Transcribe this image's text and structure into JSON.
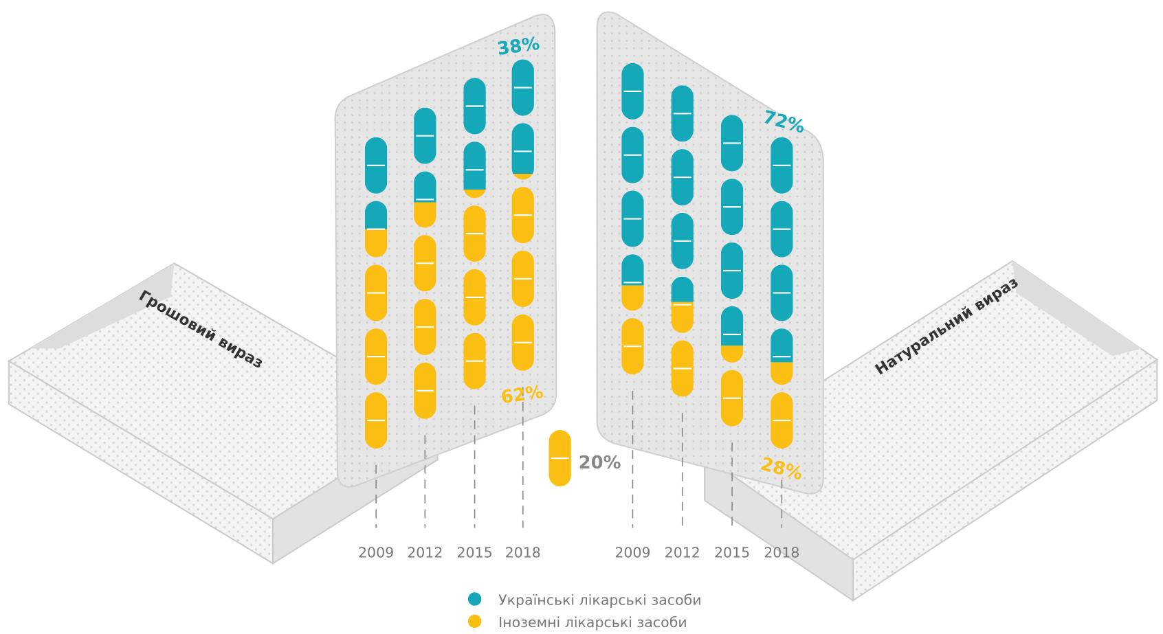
{
  "chart_data": [
    {
      "type": "pill",
      "title": "Грошовий вираз",
      "categories": [
        "2009",
        "2012",
        "2015",
        "2018"
      ],
      "series": [
        {
          "name": "Українські лікарські засоби",
          "color": "#14a8b8",
          "values": [
            30,
            31,
            37,
            38
          ],
          "value_labels": [
            null,
            null,
            null,
            "38%"
          ]
        },
        {
          "name": "Іноземні лікарські засоби",
          "color": "#fbbf13",
          "values": [
            70,
            69,
            63,
            62
          ],
          "value_labels": [
            null,
            null,
            null,
            "62%"
          ]
        }
      ]
    },
    {
      "type": "pill",
      "title": "Натуральний вираз",
      "categories": [
        "2009",
        "2012",
        "2015",
        "2018"
      ],
      "series": [
        {
          "color": "#14a8b8",
          "values": [
            71,
            69,
            74,
            72
          ],
          "value_labels": [
            null,
            null,
            null,
            "72%"
          ]
        },
        {
          "color": "#fbbf13",
          "values": [
            29,
            31,
            26,
            28
          ],
          "value_labels": [
            null,
            null,
            null,
            "28%"
          ]
        }
      ]
    }
  ],
  "pill_unit": {
    "value": 20,
    "label": "20%"
  }
}
